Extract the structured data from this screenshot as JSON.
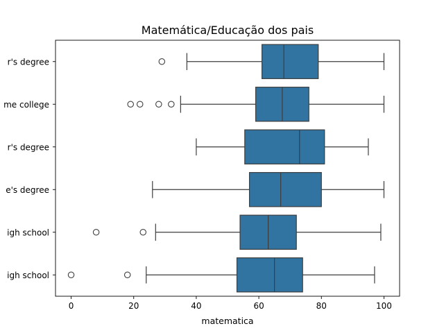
{
  "chart_data": {
    "type": "box",
    "orientation": "horizontal",
    "title": "Matemática/Educação dos pais",
    "xlabel": "matematica",
    "ylabel": "",
    "xlim": [
      -5,
      105
    ],
    "xticks": [
      0,
      20,
      40,
      60,
      80,
      100
    ],
    "grid": false,
    "color": "#3274a1",
    "line_color": "#3d3d3d",
    "categories": [
      "r's degree",
      "me college",
      "r's degree",
      "e's degree",
      "igh school",
      "igh school"
    ],
    "boxes": [
      {
        "whisker_low": 37,
        "q1": 61,
        "median": 68,
        "q3": 79,
        "whisker_high": 100,
        "outliers": [
          29
        ]
      },
      {
        "whisker_low": 35,
        "q1": 59,
        "median": 67.5,
        "q3": 76,
        "whisker_high": 100,
        "outliers": [
          19,
          22,
          28,
          32
        ]
      },
      {
        "whisker_low": 40,
        "q1": 55.5,
        "median": 73,
        "q3": 81,
        "whisker_high": 95,
        "outliers": []
      },
      {
        "whisker_low": 26,
        "q1": 57,
        "median": 67,
        "q3": 80,
        "whisker_high": 100,
        "outliers": []
      },
      {
        "whisker_low": 27,
        "q1": 54,
        "median": 63,
        "q3": 72,
        "whisker_high": 99,
        "outliers": [
          8,
          23
        ]
      },
      {
        "whisker_low": 24,
        "q1": 53,
        "median": 65,
        "q3": 74,
        "whisker_high": 97,
        "outliers": [
          0,
          18
        ]
      }
    ]
  }
}
